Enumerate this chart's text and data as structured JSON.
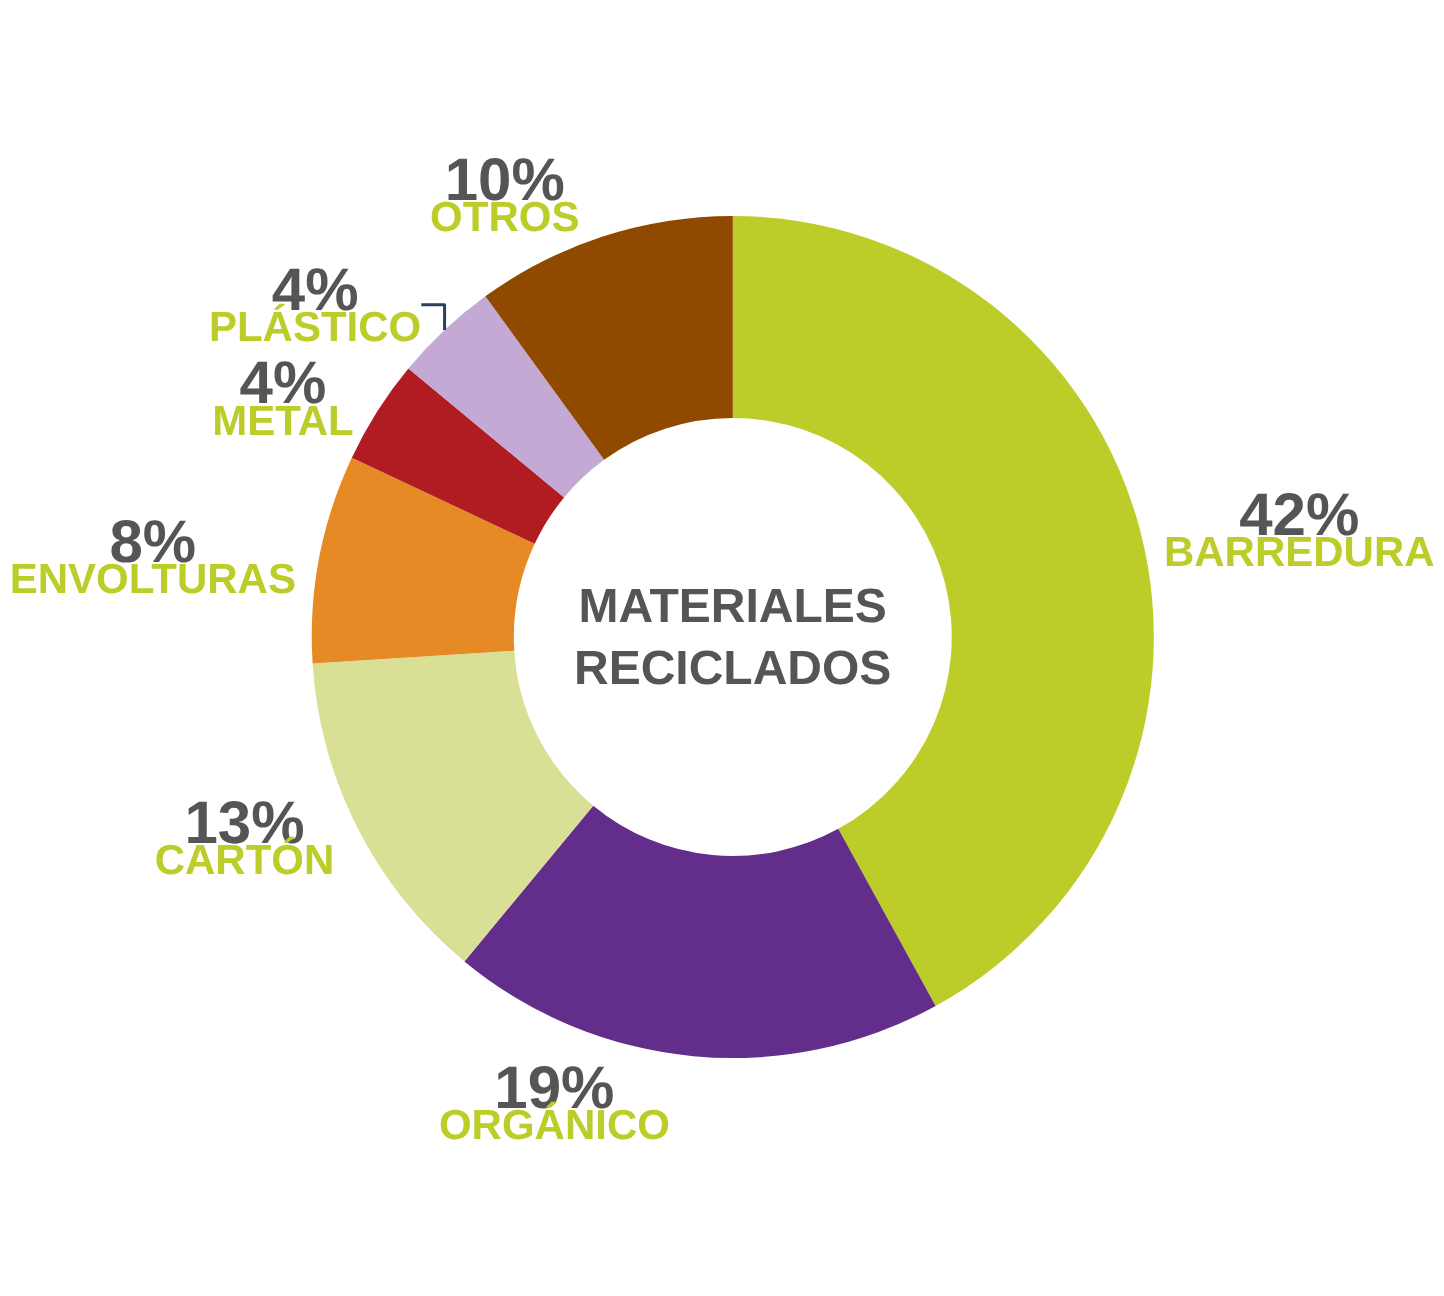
{
  "chart_data": {
    "type": "donut",
    "title": "MATERIALES RECICLADOS",
    "categories": [
      "BARREDURA",
      "ORGÁNICO",
      "CARTÓN",
      "ENVOLTURAS",
      "METAL",
      "PLÁSTICO",
      "OTROS"
    ],
    "values": [
      42,
      19,
      13,
      8,
      4,
      4,
      10
    ],
    "value_labels": [
      "42%",
      "19%",
      "13%",
      "8%",
      "4%",
      "4%",
      "10%"
    ],
    "colors": [
      "#bccd2a",
      "#632d8c",
      "#d9e096",
      "#e58a24",
      "#b01c22",
      "#c3a9d3",
      "#8f4a00"
    ],
    "legend": false
  }
}
